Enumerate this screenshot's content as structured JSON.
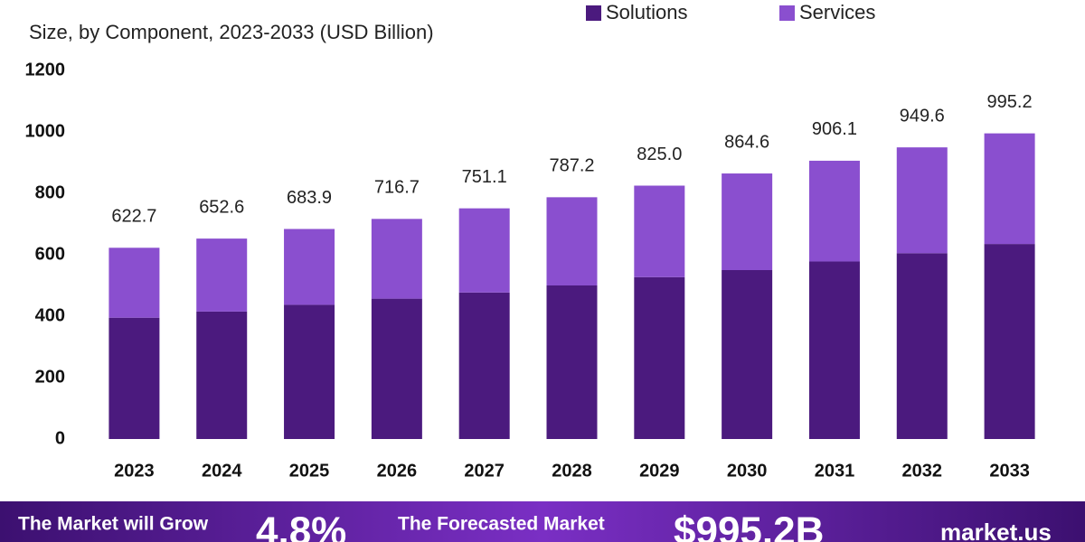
{
  "chart_data": {
    "type": "stacked-bar",
    "subtitle": "Size, by Component, 2023-2033 (USD Billion)",
    "categories": [
      "2023",
      "2024",
      "2025",
      "2026",
      "2027",
      "2028",
      "2029",
      "2030",
      "2031",
      "2032",
      "2033"
    ],
    "series": [
      {
        "name": "Solutions",
        "color": "#4b1a7e",
        "values": [
          395,
          415,
          437,
          457,
          477,
          500,
          527,
          550,
          578,
          605,
          635
        ]
      },
      {
        "name": "Services",
        "color": "#8a4fcf",
        "values": [
          227.7,
          237.6,
          246.9,
          259.7,
          274.1,
          287.2,
          298.0,
          314.6,
          328.1,
          344.6,
          360.2
        ]
      }
    ],
    "totals": [
      622.7,
      652.6,
      683.9,
      716.7,
      751.1,
      787.2,
      825.0,
      864.6,
      906.1,
      949.6,
      995.2
    ],
    "total_labels": [
      "622.7",
      "652.6",
      "683.9",
      "716.7",
      "751.1",
      "787.2",
      "825.0",
      "864.6",
      "906.1",
      "949.6",
      "995.2"
    ],
    "ylim": [
      0,
      1200
    ],
    "yticks": [
      0,
      200,
      400,
      600,
      800,
      1000,
      1200
    ],
    "grid": false,
    "legend": "top"
  },
  "banner": {
    "grow_text": "The Market will Grow",
    "cagr": "4.8%",
    "forecast_text": "The Forecasted Market",
    "forecast_value": "$995.2B",
    "brand": "market.us"
  }
}
